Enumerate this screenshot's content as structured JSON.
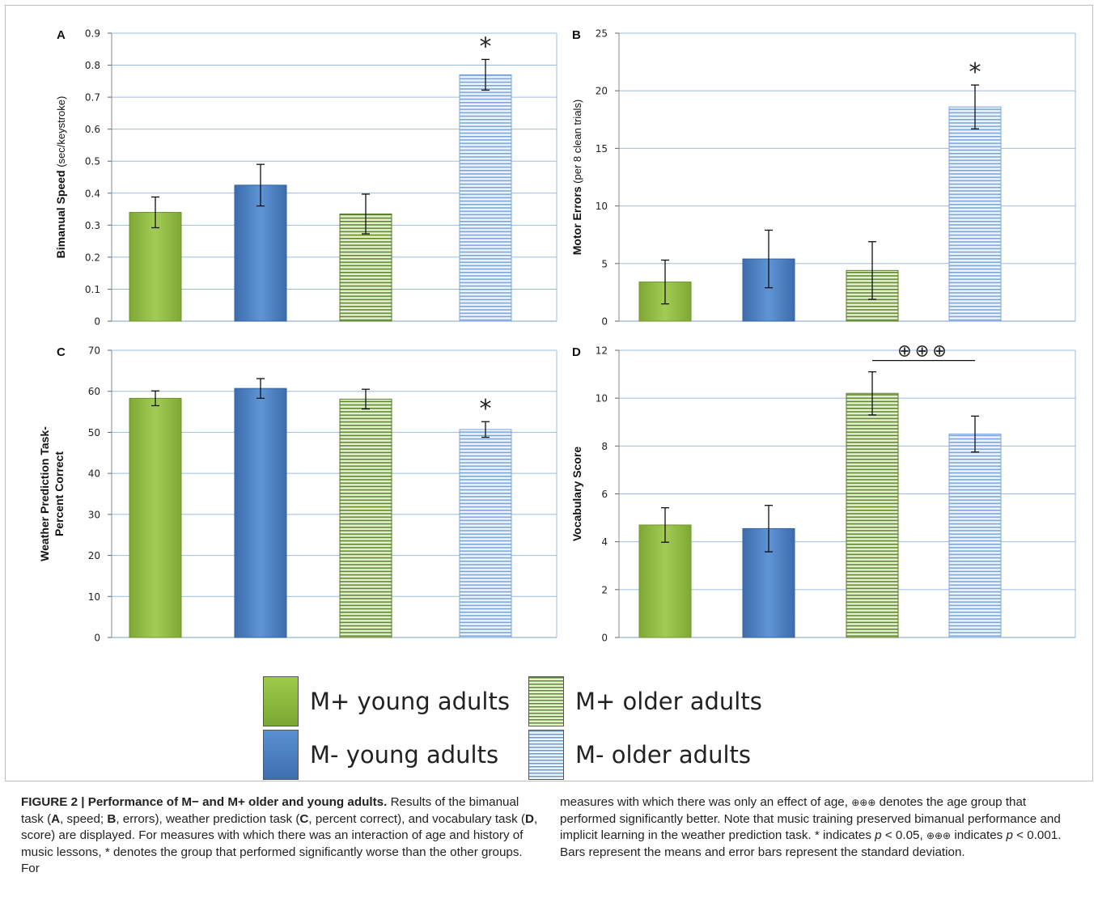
{
  "chart_data": [
    {
      "type": "bar",
      "panel": "A",
      "categories": [
        "M+ young adults",
        "M- young adults",
        "M+ older adults",
        "M- older adults"
      ],
      "values": [
        0.34,
        0.425,
        0.335,
        0.77
      ],
      "errors": [
        0.048,
        0.065,
        0.062,
        0.048
      ],
      "ylabel": "Bimanual Speed (sec/keystroke)",
      "ylim": [
        0,
        0.9
      ],
      "ticks": [
        "0",
        "0.1",
        "0.2",
        "0.3",
        "0.4",
        "0.5",
        "0.6",
        "0.7",
        "0.8",
        "0.9"
      ],
      "annotations": [
        {
          "category": "M- older adults",
          "text": "*"
        }
      ]
    },
    {
      "type": "bar",
      "panel": "B",
      "categories": [
        "M+ young adults",
        "M- young adults",
        "M+ older adults",
        "M- older adults"
      ],
      "values": [
        3.4,
        5.4,
        4.4,
        18.6
      ],
      "errors": [
        1.9,
        2.5,
        2.5,
        1.9
      ],
      "ylabel": "Motor Errors (per 8 clean trials)",
      "ylim": [
        0,
        25
      ],
      "ticks": [
        "0",
        "5",
        "10",
        "15",
        "20",
        "25"
      ],
      "annotations": [
        {
          "category": "M- older adults",
          "text": "*"
        }
      ]
    },
    {
      "type": "bar",
      "panel": "C",
      "categories": [
        "M+ young adults",
        "M- young adults",
        "M+ older adults",
        "M- older adults"
      ],
      "values": [
        58.3,
        60.7,
        58.1,
        50.7
      ],
      "errors": [
        1.8,
        2.4,
        2.4,
        1.9
      ],
      "ylabel_lines": [
        "Weather Prediction Task-",
        "Percent Correct"
      ],
      "ylim": [
        0,
        70
      ],
      "ticks": [
        "0",
        "10",
        "20",
        "30",
        "40",
        "50",
        "60",
        "70"
      ],
      "annotations": [
        {
          "category": "M- older adults",
          "text": "*"
        }
      ]
    },
    {
      "type": "bar",
      "panel": "D",
      "categories": [
        "M+ young adults",
        "M- young adults",
        "M+ older adults",
        "M- older adults"
      ],
      "values": [
        4.7,
        4.55,
        10.2,
        8.5
      ],
      "errors": [
        0.72,
        0.97,
        0.9,
        0.75
      ],
      "ylabel": "Vocabulary Score",
      "ylim": [
        0,
        12
      ],
      "ticks": [
        "0",
        "2",
        "4",
        "6",
        "8",
        "10",
        "12"
      ],
      "annotations": [
        {
          "category": "M+ older adults",
          "text": "⊕⊕⊕",
          "bracket_to": "M- older adults"
        }
      ]
    }
  ],
  "legend": {
    "items": [
      {
        "label": "M+ young adults",
        "pattern": "solid",
        "color": "#8fbc3b"
      },
      {
        "label": "M- young adults",
        "pattern": "solid",
        "color": "#4a7fc1"
      },
      {
        "label": "M+ older adults",
        "pattern": "horizontal-stripes",
        "color": "#5f8a2a"
      },
      {
        "label": "M- older adults",
        "pattern": "horizontal-stripes",
        "color": "#6a9bd6"
      }
    ]
  },
  "colors": {
    "green": "#8fbc3b",
    "blue": "#4a7fc1",
    "green_stripe": "#5f8a2a",
    "blue_stripe": "#6a9bd6",
    "gridline": "#9dbbe0"
  },
  "caption": {
    "left": {
      "title": "FIGURE 2 | Performance of M− and M+ older and young adults.",
      "t1": " Results of the bimanual task (",
      "b1": "A",
      "t2": ", speed; ",
      "b2": "B",
      "t3": ", errors), weather prediction task (",
      "b3": "C",
      "t4": ", percent correct), and vocabulary task (",
      "b4": "D",
      "t5": ", score) are displayed. For measures with which there was an interaction of age and history of music lessons, * denotes the group that performed significantly worse than the other groups. For"
    },
    "right": {
      "t1": "measures with which there was only an effect of age, ",
      "sym1": "⊕⊕⊕",
      "t2": " denotes the age group that performed significantly better. Note that music training preserved bimanual performance and implicit learning in the weather prediction task. * indicates ",
      "p1": "p",
      "t3": " < 0.05, ",
      "sym2": "⊕⊕⊕",
      "t4": " indicates ",
      "p2": "p",
      "t5": " < 0.001. Bars represent the means and error bars represent the standard deviation."
    }
  }
}
